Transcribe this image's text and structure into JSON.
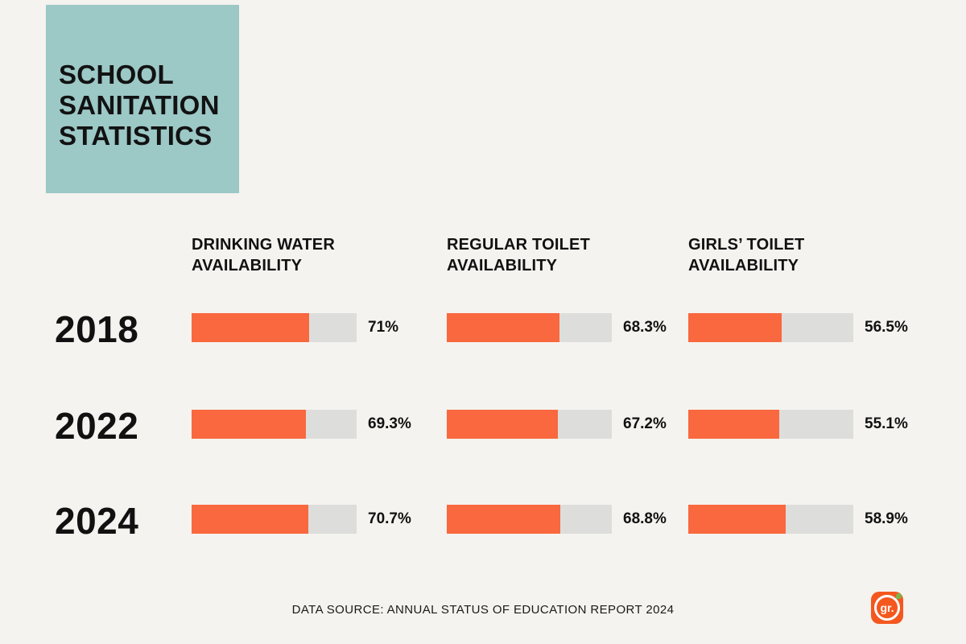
{
  "title": "SCHOOL SANITATION STATISTICS",
  "footer": {
    "source": "DATA SOURCE: ANNUAL STATUS OF EDUCATION REPORT 2024"
  },
  "logo": {
    "text": "gr."
  },
  "colors": {
    "background": "#f5f3ef",
    "title_box_teal": "#9cc8c6",
    "bar_fill_orange": "#f9683e",
    "bar_track_gray": "#dddddb",
    "text_black": "#111111",
    "logo_orange": "#f4581f",
    "logo_leaf_green": "#7ab648"
  },
  "chart_data": {
    "type": "bar",
    "orientation": "horizontal",
    "title": "SCHOOL SANITATION STATISTICS",
    "categories": [
      "2018",
      "2022",
      "2024"
    ],
    "series": [
      {
        "name": "DRINKING WATER AVAILABILITY",
        "values": [
          71,
          69.3,
          70.7
        ],
        "labels": [
          "71%",
          "69.3%",
          "70.7%"
        ]
      },
      {
        "name": "REGULAR TOILET AVAILABILITY",
        "values": [
          68.3,
          67.2,
          68.8
        ],
        "labels": [
          "68.3%",
          "67.2%",
          "68.8%"
        ]
      },
      {
        "name": "GIRLS’ TOILET AVAILABILITY",
        "values": [
          56.5,
          55.1,
          58.9
        ],
        "labels": [
          "56.5%",
          "55.1%",
          "58.9%"
        ]
      }
    ],
    "xlim": [
      0,
      100
    ],
    "grid": false,
    "legend_position": "none",
    "source": "DATA SOURCE: ANNUAL STATUS OF EDUCATION REPORT 2024"
  }
}
